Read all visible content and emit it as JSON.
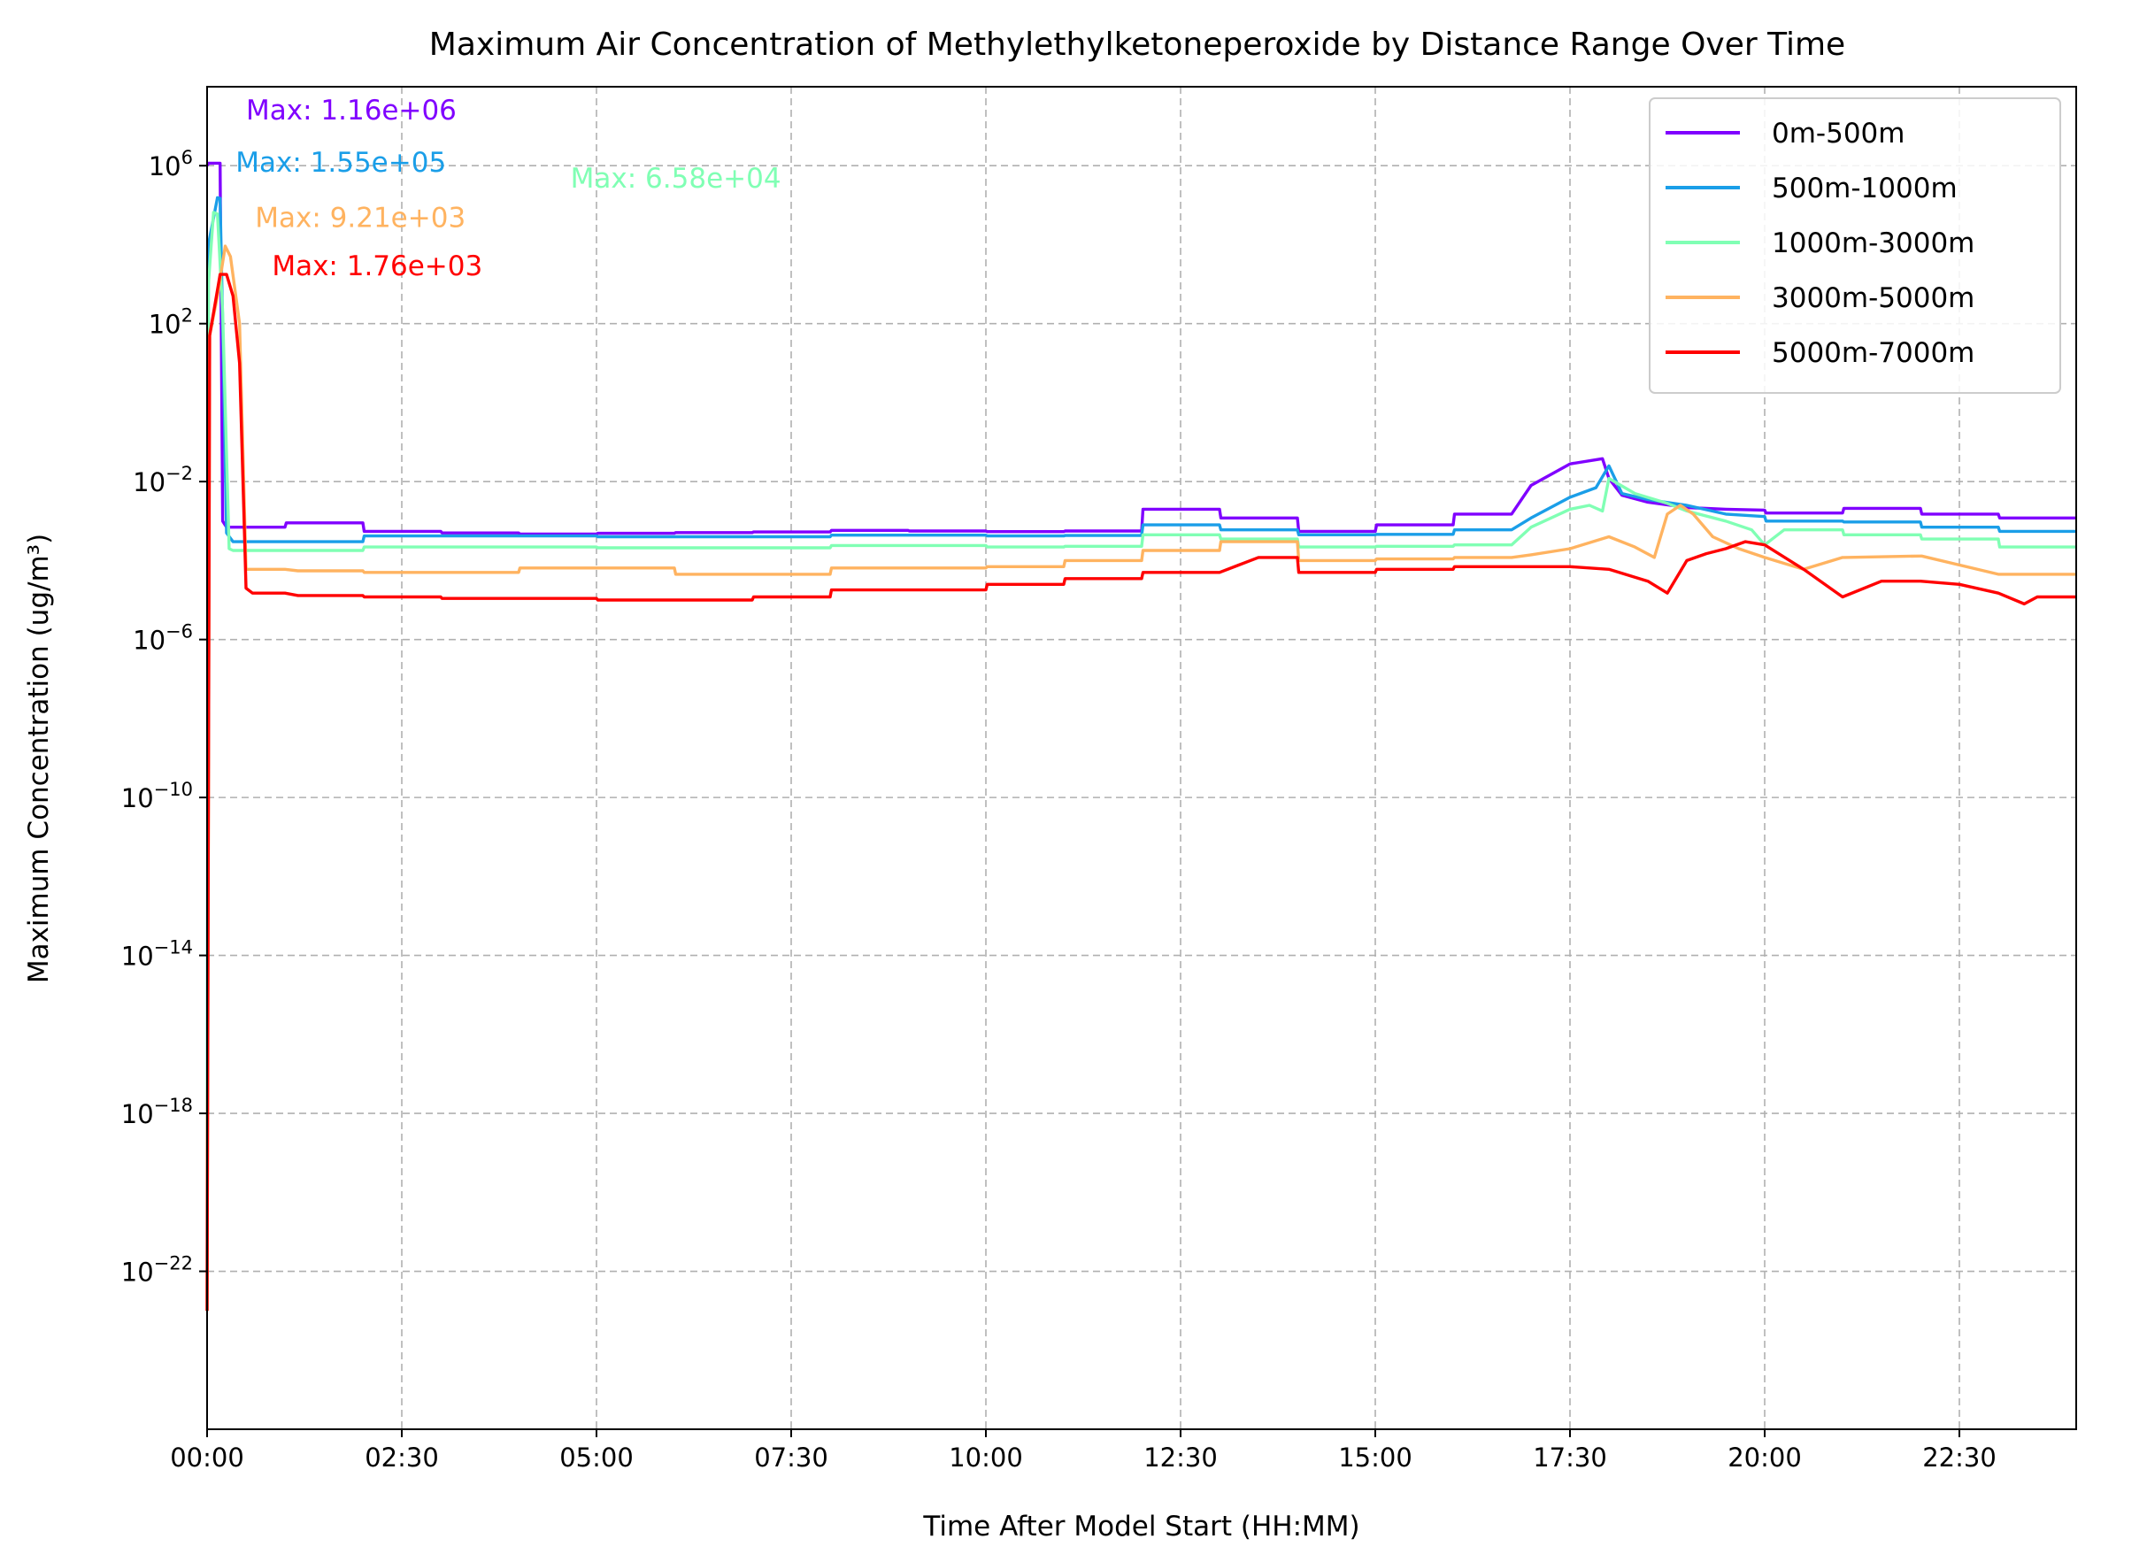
{
  "chart_data": {
    "type": "line",
    "title": "Maximum Air Concentration of Methylethylketoneperoxide by Distance Range Over Time",
    "xlabel": "Time After Model Start (HH:MM)",
    "ylabel": "Maximum Concentration (ug/m³)",
    "y_scale": "log",
    "xlim": [
      "00:00",
      "24:00"
    ],
    "ylim": [
      1e-26,
      100000000.0
    ],
    "grid": true,
    "legend_position": "top-right",
    "x_ticks": [
      "00:00",
      "02:30",
      "05:00",
      "07:30",
      "10:00",
      "12:30",
      "15:00",
      "17:30",
      "20:00",
      "22:30"
    ],
    "y_ticks": [
      {
        "exp": "6",
        "value": 1000000.0
      },
      {
        "exp": "2",
        "value": 100.0
      },
      {
        "exp": "−2",
        "value": 0.01
      },
      {
        "exp": "−6",
        "value": 1e-06
      },
      {
        "exp": "−10",
        "value": 1e-10
      },
      {
        "exp": "−14",
        "value": 1e-14
      },
      {
        "exp": "−18",
        "value": 1e-18
      },
      {
        "exp": "−22",
        "value": 1e-22
      }
    ],
    "series": [
      {
        "name": "0m-500m",
        "color": "#8000ff",
        "x": [
          "00:00",
          "00:01",
          "00:10",
          "00:12",
          "00:15",
          "01:00",
          "01:01",
          "02:00",
          "02:01",
          "03:00",
          "03:01",
          "04:00",
          "04:01",
          "05:00",
          "05:01",
          "06:00",
          "06:01",
          "07:00",
          "07:01",
          "08:00",
          "08:01",
          "09:00",
          "09:01",
          "10:00",
          "10:01",
          "11:00",
          "11:01",
          "12:00",
          "12:01",
          "13:00",
          "13:01",
          "14:00",
          "14:01",
          "15:00",
          "15:01",
          "16:00",
          "16:01",
          "16:45",
          "17:00",
          "17:30",
          "17:55",
          "18:00",
          "18:10",
          "18:30",
          "19:00",
          "19:30",
          "20:00",
          "20:01",
          "21:00",
          "21:01",
          "22:00",
          "22:01",
          "23:00",
          "23:01",
          "24:00"
        ],
        "y": [
          1000000.0,
          1160000.0,
          1160000.0,
          0.001,
          0.0007,
          0.0007,
          0.0009,
          0.0009,
          0.00055,
          0.00055,
          0.0005,
          0.0005,
          0.00047,
          0.00047,
          0.00049,
          0.00049,
          0.00051,
          0.00051,
          0.00053,
          0.00053,
          0.00058,
          0.00058,
          0.00056,
          0.00056,
          0.00054,
          0.00054,
          0.00056,
          0.00056,
          0.002,
          0.002,
          0.0012,
          0.0012,
          0.00055,
          0.00055,
          0.0008,
          0.0008,
          0.0015,
          0.0015,
          0.008,
          0.028,
          0.038,
          0.012,
          0.0045,
          0.003,
          0.0022,
          0.002,
          0.0019,
          0.0016,
          0.0016,
          0.0021,
          0.0021,
          0.0015,
          0.0015,
          0.0012,
          0.0012
        ]
      },
      {
        "name": "500m-1000m",
        "color": "#1a9ee8",
        "x": [
          "00:00",
          "00:01",
          "00:08",
          "00:10",
          "00:12",
          "00:15",
          "00:20",
          "01:00",
          "02:00",
          "02:01",
          "05:00",
          "05:01",
          "08:00",
          "08:01",
          "10:00",
          "10:01",
          "11:00",
          "11:01",
          "12:00",
          "12:01",
          "13:00",
          "13:01",
          "14:00",
          "14:01",
          "15:00",
          "15:01",
          "16:00",
          "16:01",
          "16:45",
          "17:00",
          "17:30",
          "17:50",
          "18:00",
          "18:10",
          "18:30",
          "19:00",
          "19:30",
          "20:00",
          "20:01",
          "21:00",
          "21:01",
          "22:00",
          "22:01",
          "23:00",
          "23:01",
          "24:00"
        ],
        "y": [
          1e-23,
          10000.0,
          155000.0,
          150000.0,
          100.0,
          0.0005,
          0.0003,
          0.0003,
          0.0003,
          0.00042,
          0.00042,
          0.0004,
          0.0004,
          0.00044,
          0.00044,
          0.00042,
          0.00042,
          0.00043,
          0.00043,
          0.0008,
          0.0008,
          0.0006,
          0.0006,
          0.00045,
          0.00045,
          0.00046,
          0.00046,
          0.0006,
          0.0006,
          0.0012,
          0.004,
          0.007,
          0.025,
          0.005,
          0.0035,
          0.0025,
          0.0015,
          0.0013,
          0.001,
          0.001,
          0.00095,
          0.00095,
          0.0007,
          0.0007,
          0.00055,
          0.00055
        ]
      },
      {
        "name": "1000m-3000m",
        "color": "#80ffb4",
        "x": [
          "00:00",
          "00:01",
          "00:05",
          "00:08",
          "00:12",
          "00:17",
          "00:20",
          "01:00",
          "02:00",
          "02:01",
          "05:00",
          "05:01",
          "08:00",
          "08:01",
          "10:00",
          "10:01",
          "11:00",
          "11:01",
          "12:00",
          "12:01",
          "13:00",
          "13:01",
          "14:00",
          "14:01",
          "15:00",
          "15:01",
          "16:00",
          "16:01",
          "16:45",
          "17:00",
          "17:30",
          "17:45",
          "17:55",
          "18:00",
          "18:20",
          "18:45",
          "19:00",
          "19:30",
          "19:50",
          "20:00",
          "20:15",
          "21:00",
          "21:01",
          "22:00",
          "22:01",
          "23:00",
          "23:01",
          "24:00"
        ],
        "y": [
          1e-23,
          1000.0,
          65800.0,
          60000.0,
          200.0,
          0.0002,
          0.00018,
          0.00018,
          0.00018,
          0.00022,
          0.00022,
          0.00021,
          0.00021,
          0.00024,
          0.00024,
          0.00022,
          0.00022,
          0.00023,
          0.00023,
          0.00045,
          0.00045,
          0.00035,
          0.00035,
          0.00022,
          0.00022,
          0.00023,
          0.00023,
          0.00025,
          0.00025,
          0.0007,
          0.002,
          0.0025,
          0.0018,
          0.012,
          0.005,
          0.0028,
          0.0018,
          0.001,
          0.0006,
          0.00025,
          0.0006,
          0.0006,
          0.00045,
          0.00045,
          0.00035,
          0.00035,
          0.00022,
          0.00022
        ]
      },
      {
        "name": "3000m-5000m",
        "color": "#ffb360",
        "x": [
          "00:00",
          "00:02",
          "00:08",
          "00:14",
          "00:18",
          "00:25",
          "00:30",
          "01:00",
          "01:10",
          "02:00",
          "02:01",
          "04:00",
          "04:01",
          "06:00",
          "06:01",
          "08:00",
          "08:01",
          "10:00",
          "10:01",
          "11:00",
          "11:01",
          "12:00",
          "12:01",
          "13:00",
          "13:01",
          "14:00",
          "14:01",
          "15:00",
          "15:01",
          "16:00",
          "16:01",
          "16:45",
          "17:00",
          "17:30",
          "18:00",
          "18:20",
          "18:35",
          "18:45",
          "18:55",
          "19:05",
          "19:20",
          "19:40",
          "20:00",
          "20:30",
          "21:00",
          "21:01",
          "22:00",
          "22:01",
          "23:00",
          "23:01",
          "24:00"
        ],
        "y": [
          1e-23,
          50.0,
          500.0,
          9210.0,
          5000.0,
          100.0,
          6e-05,
          6e-05,
          5.5e-05,
          5.5e-05,
          5e-05,
          5e-05,
          6.5e-05,
          6.5e-05,
          4.5e-05,
          4.5e-05,
          6.5e-05,
          6.5e-05,
          7e-05,
          7e-05,
          0.0001,
          0.0001,
          0.00018,
          0.00018,
          0.0003,
          0.0003,
          0.0001,
          0.0001,
          0.00011,
          0.00011,
          0.00012,
          0.00012,
          0.00014,
          0.0002,
          0.0004,
          0.00022,
          0.00012,
          0.0015,
          0.0025,
          0.0015,
          0.0004,
          0.0002,
          0.00012,
          6e-05,
          0.00012,
          0.00012,
          0.00013,
          0.00013,
          4.5e-05,
          4.5e-05,
          4.5e-05
        ]
      },
      {
        "name": "5000m-7000m",
        "color": "#ff0000",
        "x": [
          "00:00",
          "00:02",
          "00:10",
          "00:15",
          "00:20",
          "00:25",
          "00:30",
          "00:35",
          "01:00",
          "01:10",
          "02:00",
          "02:01",
          "03:00",
          "03:01",
          "05:00",
          "05:01",
          "07:00",
          "07:01",
          "08:00",
          "08:01",
          "10:00",
          "10:01",
          "11:00",
          "11:01",
          "12:00",
          "12:01",
          "13:00",
          "13:30",
          "14:00",
          "14:01",
          "15:00",
          "15:01",
          "16:00",
          "16:01",
          "17:00",
          "17:30",
          "18:00",
          "18:30",
          "18:45",
          "19:00",
          "19:15",
          "19:30",
          "19:45",
          "20:00",
          "20:30",
          "21:00",
          "21:30",
          "22:00",
          "22:30",
          "23:00",
          "23:20",
          "23:30",
          "24:00"
        ],
        "y": [
          1e-23,
          50.0,
          1760.0,
          1760.0,
          500.0,
          10.0,
          2e-05,
          1.5e-05,
          1.5e-05,
          1.3e-05,
          1.3e-05,
          1.2e-05,
          1.2e-05,
          1.1e-05,
          1.1e-05,
          1e-05,
          1e-05,
          1.2e-05,
          1.2e-05,
          1.8e-05,
          1.8e-05,
          2.5e-05,
          2.5e-05,
          3.5e-05,
          3.5e-05,
          5e-05,
          5e-05,
          0.00012,
          0.00012,
          5e-05,
          5e-05,
          6e-05,
          6e-05,
          7e-05,
          7e-05,
          7e-05,
          6e-05,
          3e-05,
          1.5e-05,
          0.0001,
          0.00015,
          0.0002,
          0.0003,
          0.00025,
          6e-05,
          1.2e-05,
          3e-05,
          3e-05,
          2.5e-05,
          1.5e-05,
          8e-06,
          1.2e-05,
          1.2e-05
        ]
      }
    ],
    "annotations": [
      {
        "text": "Max: 1.16e+06",
        "color": "#8000ff",
        "x": "00:30",
        "y": 15000000.0
      },
      {
        "text": "Max: 1.55e+05",
        "color": "#1a9ee8",
        "x": "00:22",
        "y": 700000.0
      },
      {
        "text": "Max: 6.58e+04",
        "color": "#80ffb4",
        "x": "04:40",
        "y": 280000.0
      },
      {
        "text": "Max: 9.21e+03",
        "color": "#ffb360",
        "x": "00:37",
        "y": 28000.0
      },
      {
        "text": "Max: 1.76e+03",
        "color": "#ff0000",
        "x": "00:50",
        "y": 1700.0
      }
    ]
  }
}
